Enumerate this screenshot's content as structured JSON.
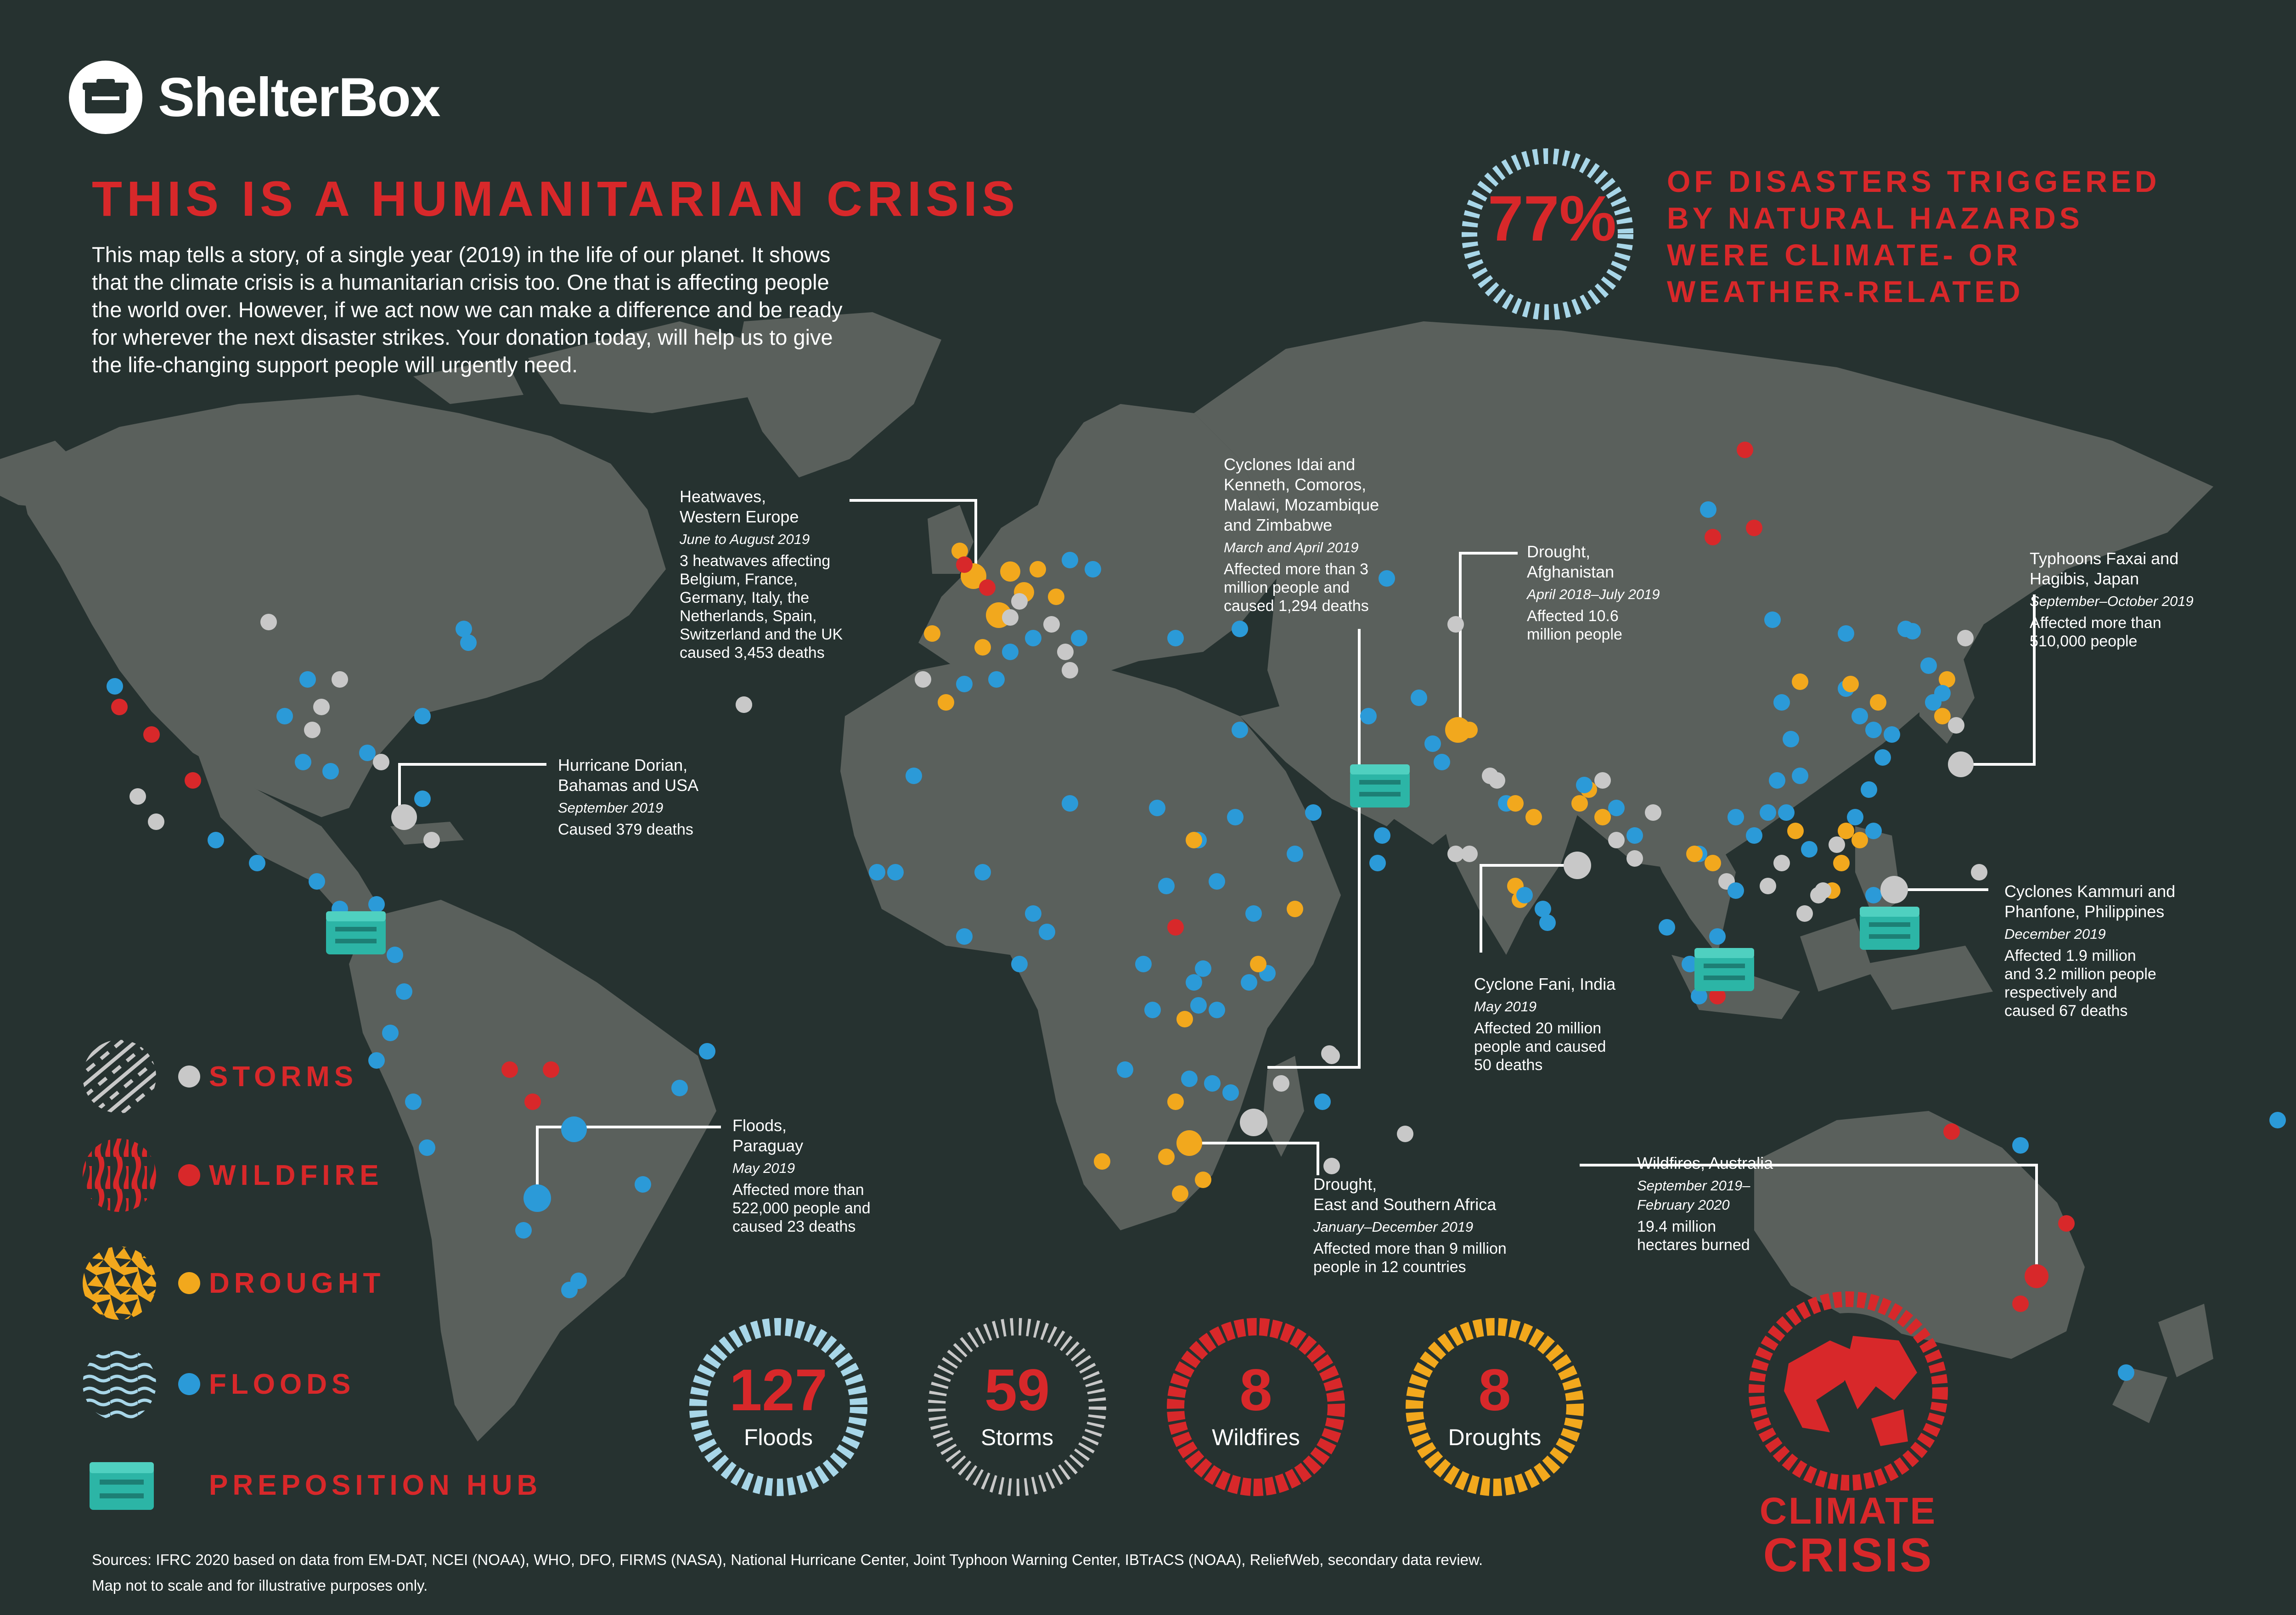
{
  "brand": {
    "name": "ShelterBox"
  },
  "title": "THIS IS A HUMANITARIAN CRISIS",
  "intro": [
    "This map tells a story, of a single year (2019) in the life of our planet. It shows",
    "that the climate crisis is a humanitarian crisis too. One that is affecting people",
    "the world over. However, if we act now we can make a difference and be ready",
    "for wherever the next disaster strikes. Your donation today, will help us to give",
    "the life-changing support people will urgently need."
  ],
  "stat": {
    "value": "77%",
    "lines": [
      "OF DISASTERS TRIGGERED",
      "BY NATURAL HAZARDS",
      "WERE CLIMATE- OR",
      "WEATHER-RELATED"
    ]
  },
  "colors": {
    "background": "#263230",
    "land": "#5a605c",
    "accent_red": "#d8282a",
    "storm": "#c8c8c8",
    "wildfire": "#d8282a",
    "drought": "#f2a81d",
    "flood": "#2b9ad8",
    "hub": "#2cb5a6"
  },
  "callouts": {
    "heatwaves": {
      "title": [
        "Heatwaves,",
        "Western Europe"
      ],
      "date": "June to August 2019",
      "text": [
        "3 heatwaves affecting",
        "Belgium, France,",
        "Germany, Italy, the",
        "Netherlands, Spain,",
        "Switzerland and the UK",
        "caused 3,453 deaths"
      ]
    },
    "cyclones_idai": {
      "title": [
        "Cyclones Idai and",
        "Kenneth, Comoros,",
        "Malawi, Mozambique",
        "and Zimbabwe"
      ],
      "date": "March and April 2019",
      "text": [
        "Affected more than 3",
        "million people and",
        "caused 1,294 deaths"
      ]
    },
    "afghanistan": {
      "title": [
        "Drought,",
        "Afghanistan"
      ],
      "date": "April 2018–July 2019",
      "text": [
        "Affected 10.6",
        "million people"
      ]
    },
    "japan": {
      "title": [
        "Typhoons Faxai and",
        "Hagibis, Japan"
      ],
      "date": "September–October 2019",
      "text": [
        "Affected more than",
        "510,000 people"
      ]
    },
    "dorian": {
      "title": [
        "Hurricane Dorian,",
        "Bahamas and USA"
      ],
      "date": "September 2019",
      "text": [
        "Caused 379 deaths"
      ]
    },
    "fani": {
      "title": [
        "Cyclone Fani, India"
      ],
      "date": "May 2019",
      "text": [
        "Affected 20 million",
        "people and caused",
        "50 deaths"
      ]
    },
    "philippines": {
      "title": [
        "Cyclones Kammuri and",
        "Phanfone, Philippines"
      ],
      "date": "December 2019",
      "text": [
        "Affected 1.9 million",
        "and 3.2 million people",
        "respectively and",
        "caused 67 deaths"
      ]
    },
    "paraguay": {
      "title": [
        "Floods,",
        "Paraguay"
      ],
      "date": "May 2019",
      "text": [
        "Affected more than",
        "522,000 people and",
        "caused 23 deaths"
      ]
    },
    "east_africa": {
      "title": [
        "Drought,",
        "East and Southern Africa"
      ],
      "date": "January–December 2019",
      "text": [
        "Affected more than 9 million",
        "people in 12 countries"
      ]
    },
    "australia": {
      "title": [
        "Wildfires, Australia"
      ],
      "date": [
        "September 2019–",
        "February 2020"
      ],
      "text": [
        "19.4 million",
        "hectares burned"
      ]
    }
  },
  "legend": [
    {
      "label": "STORMS",
      "icon": "storm-pattern-icon"
    },
    {
      "label": "WILDFIRE",
      "icon": "wildfire-pattern-icon"
    },
    {
      "label": "DROUGHT",
      "icon": "drought-pattern-icon"
    },
    {
      "label": "FLOODS",
      "icon": "flood-pattern-icon"
    },
    {
      "label": "PREPOSITION HUB",
      "icon": "aid-box-icon"
    }
  ],
  "counts": [
    {
      "value": "127",
      "label": "Floods"
    },
    {
      "value": "59",
      "label": "Storms"
    },
    {
      "value": "8",
      "label": "Wildfires"
    },
    {
      "value": "8",
      "label": "Droughts"
    }
  ],
  "climate_crisis": [
    "CLIMATE",
    "CRISIS"
  ],
  "sources": [
    "Sources: IFRC 2020 based on data from EM-DAT, NCEI (NOAA), WHO, DFO, FIRMS (NASA), National Hurricane Center, Joint Typhoon Warning Center, IBTrACS (NOAA), ReliefWeb, secondary data review.",
    "Map not to scale and for illustrative purposes only."
  ]
}
